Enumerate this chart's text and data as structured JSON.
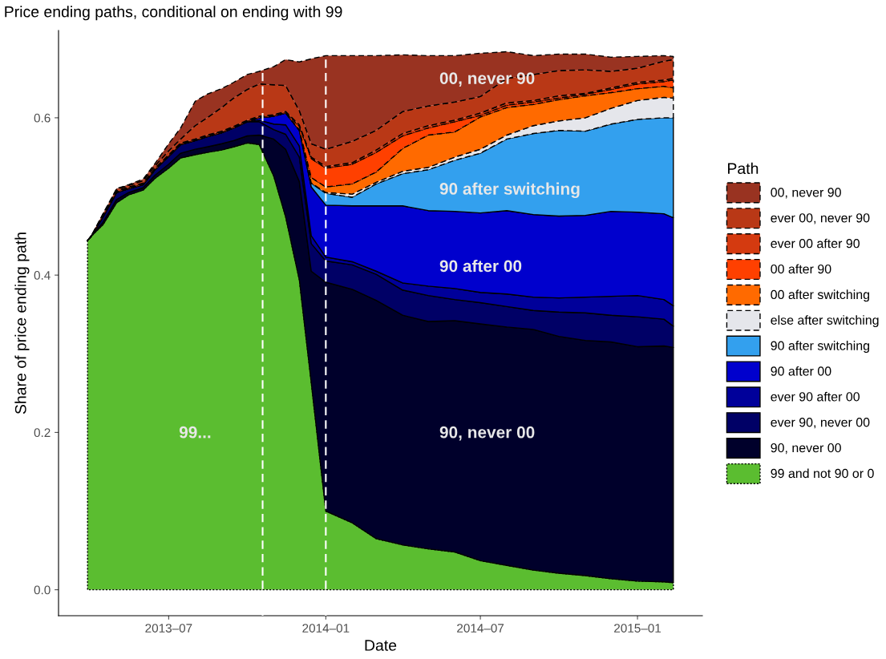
{
  "chart_data": {
    "type": "area",
    "stacked": true,
    "title": "Price ending paths, conditional on ending with 99",
    "xlabel": "Date",
    "ylabel": "Share of price ending path",
    "legend_title": "Path",
    "legend": "right",
    "grid": false,
    "x": [
      "2013-03-28",
      "2013-04-01",
      "2013-04-15",
      "2013-05-01",
      "2013-05-15",
      "2013-06-01",
      "2013-06-15",
      "2013-07-01",
      "2013-07-15",
      "2013-08-01",
      "2013-08-15",
      "2013-09-01",
      "2013-09-15",
      "2013-10-01",
      "2013-10-15",
      "2013-11-01",
      "2013-11-15",
      "2013-12-01",
      "2013-12-15",
      "2014-01-01",
      "2014-02-01",
      "2014-03-01",
      "2014-04-01",
      "2014-05-01",
      "2014-06-01",
      "2014-07-01",
      "2014-08-01",
      "2014-09-01",
      "2014-10-01",
      "2014-11-01",
      "2014-12-01",
      "2015-01-01",
      "2015-02-01",
      "2015-02-12"
    ],
    "xlim": [
      "2013-02-22",
      "2015-03-18"
    ],
    "xticks": [
      {
        "value": "2013-07-01",
        "label": "2013–07"
      },
      {
        "value": "2014-01-01",
        "label": "2014–01"
      },
      {
        "value": "2014-07-01",
        "label": "2014–07"
      },
      {
        "value": "2015-01-01",
        "label": "2015–01"
      }
    ],
    "ylim": [
      -0.033,
      0.711
    ],
    "yticks": [
      {
        "value": 0,
        "label": "0.0"
      },
      0.2,
      0.4,
      0.6
    ],
    "series": [
      {
        "name": "99 and not 90 or 0",
        "color": "#5bbd30",
        "line_style": "dotted",
        "values": [
          0.444,
          0.449,
          0.464,
          0.492,
          0.502,
          0.508,
          0.523,
          0.536,
          0.549,
          0.553,
          0.556,
          0.559,
          0.563,
          0.568,
          0.566,
          0.526,
          0.474,
          0.394,
          0.263,
          0.1,
          0.085,
          0.065,
          0.057,
          0.052,
          0.048,
          0.037,
          0.031,
          0.025,
          0.021,
          0.018,
          0.014,
          0.011,
          0.01,
          0.009
        ]
      },
      {
        "name": "90, never 00",
        "color": "#00002b",
        "line_style": "solid",
        "values": [
          0,
          0,
          0.003,
          0.004,
          0.003,
          0.003,
          0.004,
          0.005,
          0.006,
          0.007,
          0.007,
          0.008,
          0.008,
          0.009,
          0.012,
          0.047,
          0.086,
          0.125,
          0.142,
          0.291,
          0.297,
          0.303,
          0.292,
          0.289,
          0.294,
          0.301,
          0.303,
          0.306,
          0.301,
          0.299,
          0.301,
          0.298,
          0.3,
          0.299
        ]
      },
      {
        "name": "ever 90, never 00",
        "color": "#000066",
        "line_style": "solid",
        "values": [
          0,
          0,
          0.007,
          0.009,
          0.005,
          0.004,
          0.007,
          0.01,
          0.011,
          0.011,
          0.013,
          0.014,
          0.016,
          0.018,
          0.017,
          0.012,
          0.019,
          0.031,
          0.035,
          0.027,
          0.031,
          0.033,
          0.032,
          0.033,
          0.027,
          0.027,
          0.026,
          0.024,
          0.031,
          0.035,
          0.034,
          0.038,
          0.034,
          0.027
        ]
      },
      {
        "name": "ever 90 after 00",
        "color": "#00009a",
        "line_style": "solid",
        "values": [
          0,
          0,
          0,
          0,
          0,
          0,
          0,
          0,
          0,
          0,
          0,
          0,
          0,
          0,
          0.002,
          0.007,
          0.012,
          0.014,
          0.01,
          0.005,
          0.004,
          0.004,
          0.009,
          0.012,
          0.014,
          0.013,
          0.016,
          0.017,
          0.018,
          0.02,
          0.024,
          0.027,
          0.025,
          0.026
        ]
      },
      {
        "name": "90 after 00",
        "color": "#0000cd",
        "line_style": "solid",
        "values": [
          0,
          0,
          0,
          0,
          0,
          0,
          0,
          0,
          0,
          0,
          0,
          0,
          0,
          0,
          0.003,
          0.01,
          0.015,
          0.02,
          0.062,
          0.066,
          0.071,
          0.083,
          0.098,
          0.096,
          0.098,
          0.101,
          0.106,
          0.105,
          0.104,
          0.104,
          0.108,
          0.106,
          0.109,
          0.112
        ]
      },
      {
        "name": "90 after switching",
        "color": "#33a0ee",
        "line_style": "solid",
        "values": [
          0,
          0,
          0,
          0,
          0,
          0,
          0,
          0,
          0,
          0,
          0,
          0,
          0,
          0,
          0,
          0,
          0,
          0,
          0.005,
          0.015,
          0.011,
          0.028,
          0.041,
          0.052,
          0.065,
          0.076,
          0.091,
          0.103,
          0.109,
          0.107,
          0.111,
          0.118,
          0.122,
          0.127
        ]
      },
      {
        "name": "else after switching",
        "color": "#e5e6eb",
        "line_style": "dashed",
        "values": [
          0,
          0,
          0,
          0,
          0,
          0,
          0,
          0,
          0,
          0,
          0,
          0,
          0,
          0,
          0,
          0,
          0,
          0,
          0,
          0.001,
          0.004,
          0.002,
          0.003,
          0.003,
          0.004,
          0.005,
          0.005,
          0.01,
          0.012,
          0.017,
          0.02,
          0.024,
          0.026,
          0.025
        ]
      },
      {
        "name": "00 after switching",
        "color": "#ff6a00",
        "line_style": "dashed",
        "values": [
          0,
          0,
          0,
          0,
          0,
          0,
          0,
          0,
          0,
          0,
          0,
          0,
          0,
          0,
          0,
          0,
          0,
          0.001,
          0.007,
          0.007,
          0.013,
          0.013,
          0.029,
          0.041,
          0.032,
          0.041,
          0.035,
          0.027,
          0.027,
          0.028,
          0.02,
          0.015,
          0.014,
          0.013
        ]
      },
      {
        "name": "00 after 90",
        "color": "#ff4000",
        "line_style": "dashed",
        "values": [
          0,
          0,
          0.001,
          0.001,
          0.001,
          0.001,
          0.001,
          0.001,
          0.001,
          0.001,
          0.001,
          0.001,
          0.001,
          0.001,
          0.001,
          0.001,
          0.001,
          0.004,
          0.024,
          0.024,
          0.025,
          0.025,
          0.016,
          0.009,
          0.013,
          0.002,
          0.003,
          0.003,
          0.002,
          0.002,
          0.004,
          0.006,
          0.006,
          0.01
        ]
      },
      {
        "name": "ever 00 after 90",
        "color": "#d43a10",
        "line_style": "dashed",
        "values": [
          0,
          0,
          0.001,
          0.001,
          0.001,
          0.001,
          0.001,
          0.001,
          0.001,
          0.001,
          0.001,
          0.001,
          0.001,
          0.001,
          0.001,
          0.001,
          0.001,
          0.002,
          0.002,
          0.002,
          0.002,
          0.003,
          0.003,
          0.003,
          0.002,
          0.003,
          0.003,
          0.002,
          0.003,
          0.001,
          0.002,
          0.002,
          0.002,
          0.002
        ]
      },
      {
        "name": "ever 00, never 90",
        "color": "#b93816",
        "line_style": "dashed",
        "values": [
          0,
          0,
          0.001,
          0.002,
          0.002,
          0.003,
          0.003,
          0.005,
          0.005,
          0.017,
          0.022,
          0.03,
          0.036,
          0.039,
          0.041,
          0.038,
          0.033,
          0.018,
          0.017,
          0.022,
          0.027,
          0.025,
          0.028,
          0.025,
          0.023,
          0.021,
          0.031,
          0.033,
          0.032,
          0.03,
          0.021,
          0.018,
          0.024,
          0.024
        ]
      },
      {
        "name": "00, never 90",
        "color": "#993321",
        "line_style": "dashed",
        "values": [
          0,
          0,
          0.001,
          0.001,
          0.001,
          0.002,
          0.003,
          0.009,
          0.014,
          0.031,
          0.03,
          0.024,
          0.02,
          0.019,
          0.016,
          0.023,
          0.033,
          0.062,
          0.108,
          0.119,
          0.109,
          0.095,
          0.072,
          0.064,
          0.059,
          0.055,
          0.034,
          0.024,
          0.021,
          0.02,
          0.018,
          0.015,
          0.007,
          0.004
        ]
      }
    ],
    "ref_lines": [
      {
        "axis": "x",
        "value": "2013-10-19",
        "color": "#ffffff",
        "line_style": "dashed"
      },
      {
        "axis": "x",
        "value": "2014-01-01",
        "color": "#ffffff",
        "line_style": "dashed"
      }
    ],
    "annotations": [
      "00, never 90",
      "90 after switching",
      "90 after 00",
      "90, never 00",
      "99..."
    ]
  }
}
